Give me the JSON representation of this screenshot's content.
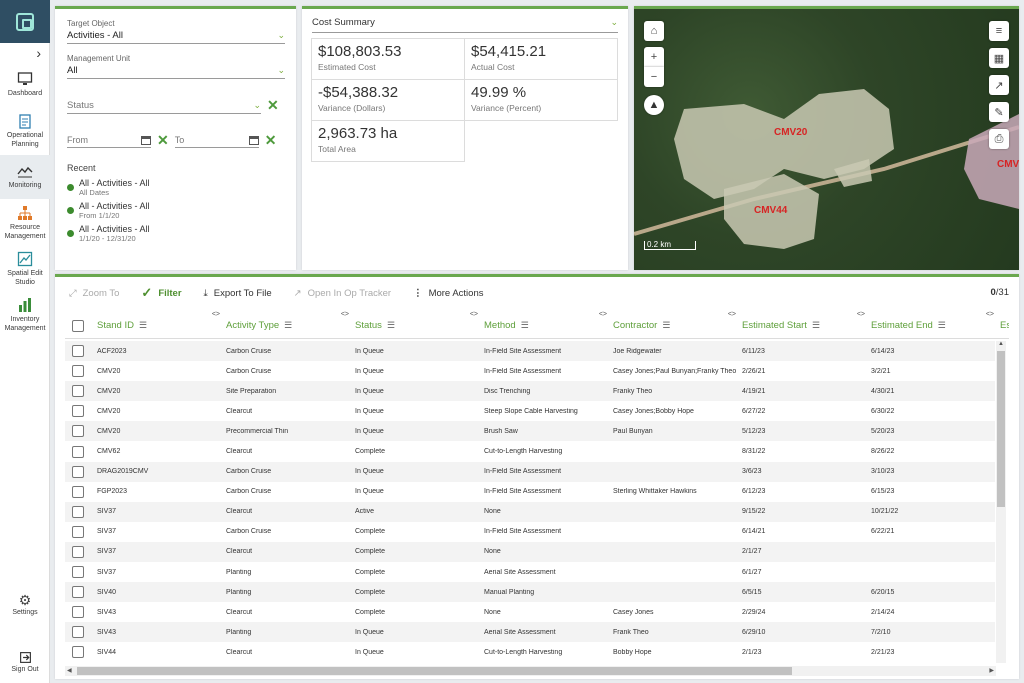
{
  "sidebar": {
    "items": [
      {
        "label": "Dashboard",
        "icon": "monitor-icon"
      },
      {
        "label": "Operational Planning",
        "icon": "clipboard-icon"
      },
      {
        "label": "Monitoring",
        "icon": "chart-line-icon",
        "active": true
      },
      {
        "label": "Resource Management",
        "icon": "org-chart-icon"
      },
      {
        "label": "Spatial Edit Studio",
        "icon": "edit-map-icon"
      },
      {
        "label": "Inventory Management",
        "icon": "bar-chart-icon"
      }
    ],
    "settings_label": "Settings",
    "signout_label": "Sign Out"
  },
  "filters": {
    "target_object_label": "Target Object",
    "target_object_value": "Activities - All",
    "management_unit_label": "Management Unit",
    "management_unit_value": "All",
    "status_placeholder": "Status",
    "from_placeholder": "From",
    "to_placeholder": "To",
    "recent_title": "Recent",
    "recent": [
      {
        "title": "All - Activities - All",
        "sub": "All Dates"
      },
      {
        "title": "All - Activities - All",
        "sub": "From 1/1/20"
      },
      {
        "title": "All - Activities - All",
        "sub": "1/1/20 - 12/31/20"
      }
    ]
  },
  "cost": {
    "header": "Cost Summary",
    "cells": [
      {
        "value": "$108,803.53",
        "label": "Estimated Cost"
      },
      {
        "value": "$54,415.21",
        "label": "Actual Cost"
      },
      {
        "value": "-$54,388.32",
        "label": "Variance (Dollars)"
      },
      {
        "value": "49.99 %",
        "label": "Variance (Percent)"
      },
      {
        "value": "2,963.73 ha",
        "label": "Total Area"
      }
    ]
  },
  "map": {
    "labels": [
      "CMV20",
      "CMV44",
      "CMV"
    ],
    "scale": "0.2 km"
  },
  "toolbar": {
    "zoom_to": "Zoom To",
    "filter": "Filter",
    "export": "Export To File",
    "open_tracker": "Open In Op Tracker",
    "more": "More Actions",
    "count_selected": "0",
    "count_total": "/31"
  },
  "table": {
    "columns": [
      "Stand ID",
      "Activity Type",
      "Status",
      "Method",
      "Contractor",
      "Estimated Start",
      "Estimated End",
      "Es"
    ],
    "rows": [
      [
        "ACF2023",
        "Carbon Cruise",
        "In Queue",
        "In-Field Site Assessment",
        "Joe Ridgewater",
        "6/11/23",
        "6/14/23"
      ],
      [
        "CMV20",
        "Carbon Cruise",
        "In Queue",
        "In-Field Site Assessment",
        "Casey Jones;Paul Bunyan;Franky Theo",
        "2/26/21",
        "3/2/21"
      ],
      [
        "CMV20",
        "Site Preparation",
        "In Queue",
        "Disc Trenching",
        "Franky Theo",
        "4/19/21",
        "4/30/21"
      ],
      [
        "CMV20",
        "Clearcut",
        "In Queue",
        "Steep Slope Cable Harvesting",
        "Casey Jones;Bobby Hope",
        "6/27/22",
        "6/30/22"
      ],
      [
        "CMV20",
        "Precommercial Thin",
        "In Queue",
        "Brush Saw",
        "Paul Bunyan",
        "5/12/23",
        "5/20/23"
      ],
      [
        "CMV62",
        "Clearcut",
        "Complete",
        "Cut-to-Length Harvesting",
        "",
        "8/31/22",
        "8/26/22"
      ],
      [
        "DRAG2019CMV",
        "Carbon Cruise",
        "In Queue",
        "In-Field Site Assessment",
        "",
        "3/6/23",
        "3/10/23"
      ],
      [
        "FGP2023",
        "Carbon Cruise",
        "In Queue",
        "In-Field Site Assessment",
        "Sterling Whittaker Hawkins",
        "6/12/23",
        "6/15/23"
      ],
      [
        "SIV37",
        "Clearcut",
        "Active",
        "None",
        "",
        "9/15/22",
        "10/21/22"
      ],
      [
        "SIV37",
        "Carbon Cruise",
        "Complete",
        "In-Field Site Assessment",
        "",
        "6/14/21",
        "6/22/21"
      ],
      [
        "SIV37",
        "Clearcut",
        "Complete",
        "None",
        "",
        "2/1/27",
        ""
      ],
      [
        "SIV37",
        "Planting",
        "Complete",
        "Aerial Site Assessment",
        "",
        "6/1/27",
        ""
      ],
      [
        "SIV40",
        "Planting",
        "Complete",
        "Manual Planting",
        "",
        "6/5/15",
        "6/20/15"
      ],
      [
        "SIV43",
        "Clearcut",
        "Complete",
        "None",
        "Casey Jones",
        "2/29/24",
        "2/14/24"
      ],
      [
        "SIV43",
        "Planting",
        "In Queue",
        "Aerial Site Assessment",
        "Frank Theo",
        "6/29/10",
        "7/2/10"
      ],
      [
        "SIV44",
        "Clearcut",
        "In Queue",
        "Cut-to-Length Harvesting",
        "Bobby Hope",
        "2/1/23",
        "2/21/23"
      ]
    ]
  }
}
